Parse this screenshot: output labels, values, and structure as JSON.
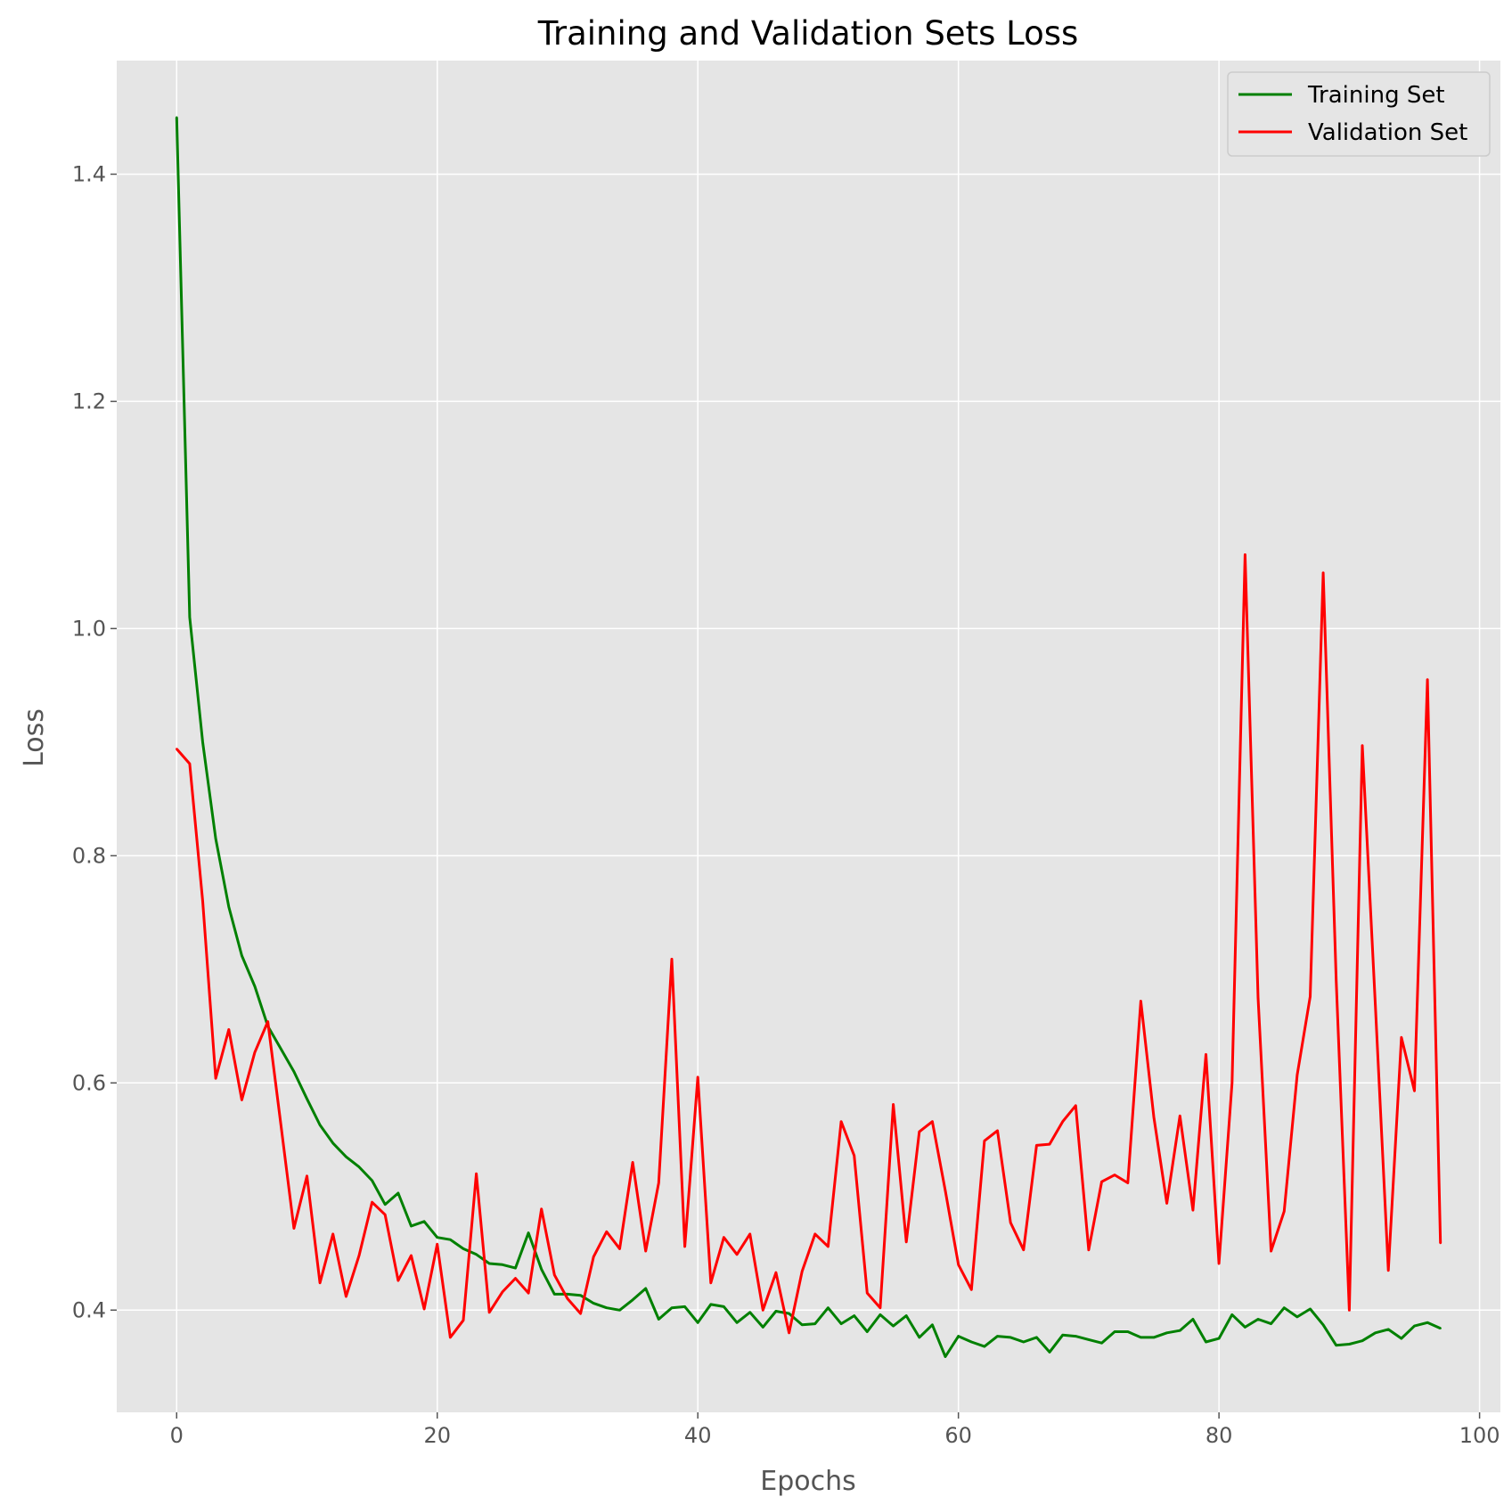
{
  "chart_data": {
    "type": "line",
    "title": "Training and Validation Sets Loss",
    "xlabel": "Epochs",
    "ylabel": "Loss",
    "xlim": [
      -4.6,
      101.6
    ],
    "ylim": [
      0.31,
      1.5
    ],
    "xticks": [
      0,
      20,
      40,
      60,
      80,
      100
    ],
    "xtick_labels": [
      "0",
      "20",
      "40",
      "60",
      "80",
      "100"
    ],
    "yticks": [
      0.4,
      0.6,
      0.8,
      1.0,
      1.2,
      1.4
    ],
    "ytick_labels": [
      "0.4",
      "0.6",
      "0.8",
      "1.0",
      "1.2",
      "1.4"
    ],
    "grid": true,
    "legend_position": "top-right",
    "x": [
      0,
      1,
      2,
      3,
      4,
      5,
      6,
      7,
      8,
      9,
      10,
      11,
      12,
      13,
      14,
      15,
      16,
      17,
      18,
      19,
      20,
      21,
      22,
      23,
      24,
      25,
      26,
      27,
      28,
      29,
      30,
      31,
      32,
      33,
      34,
      35,
      36,
      37,
      38,
      39,
      40,
      41,
      42,
      43,
      44,
      45,
      46,
      47,
      48,
      49,
      50,
      51,
      52,
      53,
      54,
      55,
      56,
      57,
      58,
      59,
      60,
      61,
      62,
      63,
      64,
      65,
      66,
      67,
      68,
      69,
      70,
      71,
      72,
      73,
      74,
      75,
      76,
      77,
      78,
      79,
      80,
      81,
      82,
      83,
      84,
      85,
      86,
      87,
      88,
      89,
      90,
      91,
      92,
      93,
      94,
      95,
      96,
      97
    ],
    "series": [
      {
        "name": "Training Set",
        "color": "#008000",
        "values": [
          1.45,
          1.01,
          0.9,
          0.815,
          0.755,
          0.712,
          0.685,
          0.65,
          0.63,
          0.61,
          0.586,
          0.563,
          0.547,
          0.535,
          0.526,
          0.514,
          0.493,
          0.503,
          0.474,
          0.478,
          0.464,
          0.462,
          0.454,
          0.449,
          0.441,
          0.44,
          0.437,
          0.468,
          0.436,
          0.414,
          0.414,
          0.413,
          0.406,
          0.402,
          0.4,
          0.409,
          0.419,
          0.392,
          0.402,
          0.403,
          0.389,
          0.405,
          0.403,
          0.389,
          0.398,
          0.385,
          0.399,
          0.397,
          0.387,
          0.388,
          0.402,
          0.388,
          0.395,
          0.381,
          0.396,
          0.386,
          0.395,
          0.376,
          0.387,
          0.359,
          0.377,
          0.372,
          0.368,
          0.377,
          0.376,
          0.372,
          0.376,
          0.363,
          0.378,
          0.377,
          0.374,
          0.371,
          0.381,
          0.381,
          0.376,
          0.376,
          0.38,
          0.382,
          0.392,
          0.372,
          0.375,
          0.396,
          0.385,
          0.392,
          0.388,
          0.402,
          0.394,
          0.401,
          0.387,
          0.369,
          0.37,
          0.373,
          0.38,
          0.383,
          0.375,
          0.386,
          0.389,
          0.384
        ]
      },
      {
        "name": "Validation Set",
        "color": "#ff0000",
        "values": [
          0.894,
          0.881,
          0.76,
          0.604,
          0.647,
          0.585,
          0.627,
          0.654,
          0.563,
          0.472,
          0.518,
          0.424,
          0.467,
          0.412,
          0.448,
          0.495,
          0.484,
          0.426,
          0.448,
          0.401,
          0.458,
          0.376,
          0.391,
          0.52,
          0.398,
          0.416,
          0.428,
          0.415,
          0.489,
          0.431,
          0.41,
          0.397,
          0.447,
          0.469,
          0.454,
          0.53,
          0.452,
          0.512,
          0.709,
          0.456,
          0.605,
          0.424,
          0.464,
          0.449,
          0.467,
          0.4,
          0.433,
          0.38,
          0.434,
          0.467,
          0.456,
          0.566,
          0.536,
          0.415,
          0.402,
          0.581,
          0.46,
          0.557,
          0.566,
          0.505,
          0.44,
          0.418,
          0.549,
          0.558,
          0.477,
          0.453,
          0.545,
          0.546,
          0.566,
          0.58,
          0.453,
          0.513,
          0.519,
          0.512,
          0.672,
          0.57,
          0.494,
          0.571,
          0.488,
          0.625,
          0.441,
          0.6,
          1.065,
          0.675,
          0.452,
          0.487,
          0.607,
          0.676,
          1.049,
          0.69,
          0.4,
          0.897,
          0.669,
          0.435,
          0.64,
          0.593,
          0.955,
          0.459
        ]
      }
    ]
  }
}
